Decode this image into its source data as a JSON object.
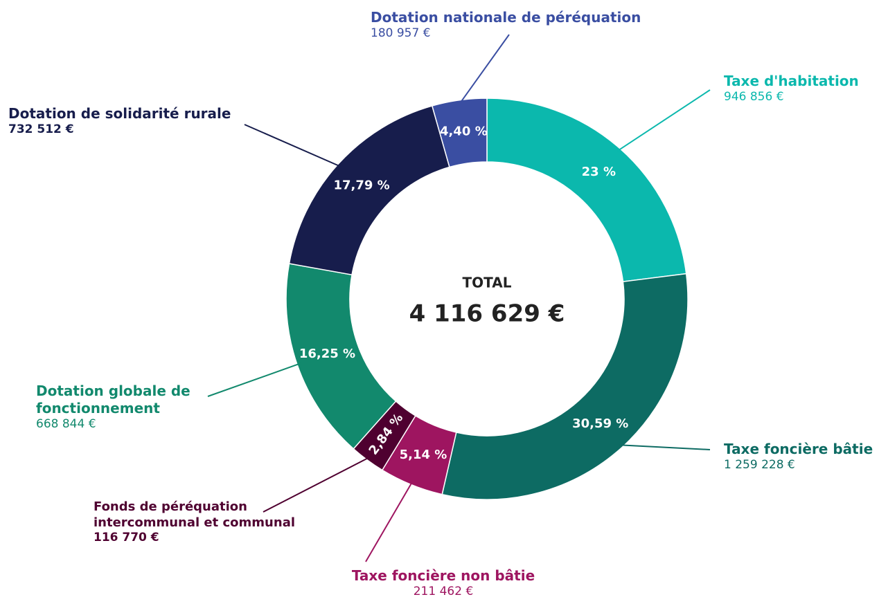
{
  "chart_data": {
    "type": "donut",
    "center_title": "TOTAL",
    "center_value": "4 116 629 €",
    "categories": [
      "Taxe d'habitation",
      "Taxe foncière bâtie",
      "Taxe foncière non bâtie",
      "Fonds de péréquation intercommunal et communal",
      "Dotation globale de fonctionnement",
      "Dotation de solidarité rurale",
      "Dotation nationale de péréquation"
    ],
    "values": [
      23,
      30.59,
      5.14,
      2.84,
      16.25,
      17.79,
      4.4
    ],
    "value_labels": [
      "23 %",
      "30,59 %",
      "5,14 %",
      "2,84 %",
      "16,25 %",
      "17,79 %",
      "4,40 %"
    ],
    "amount_labels": [
      "946 856 €",
      "1 259 228 €",
      "211 462 €",
      "116 770 €",
      "668 844 €",
      "732 512 €",
      "180 957 €"
    ],
    "colors": [
      "#0bb8ad",
      "#0d6b63",
      "#9e1560",
      "#4f0030",
      "#12896d",
      "#171d4c",
      "#3a4ea2"
    ]
  }
}
